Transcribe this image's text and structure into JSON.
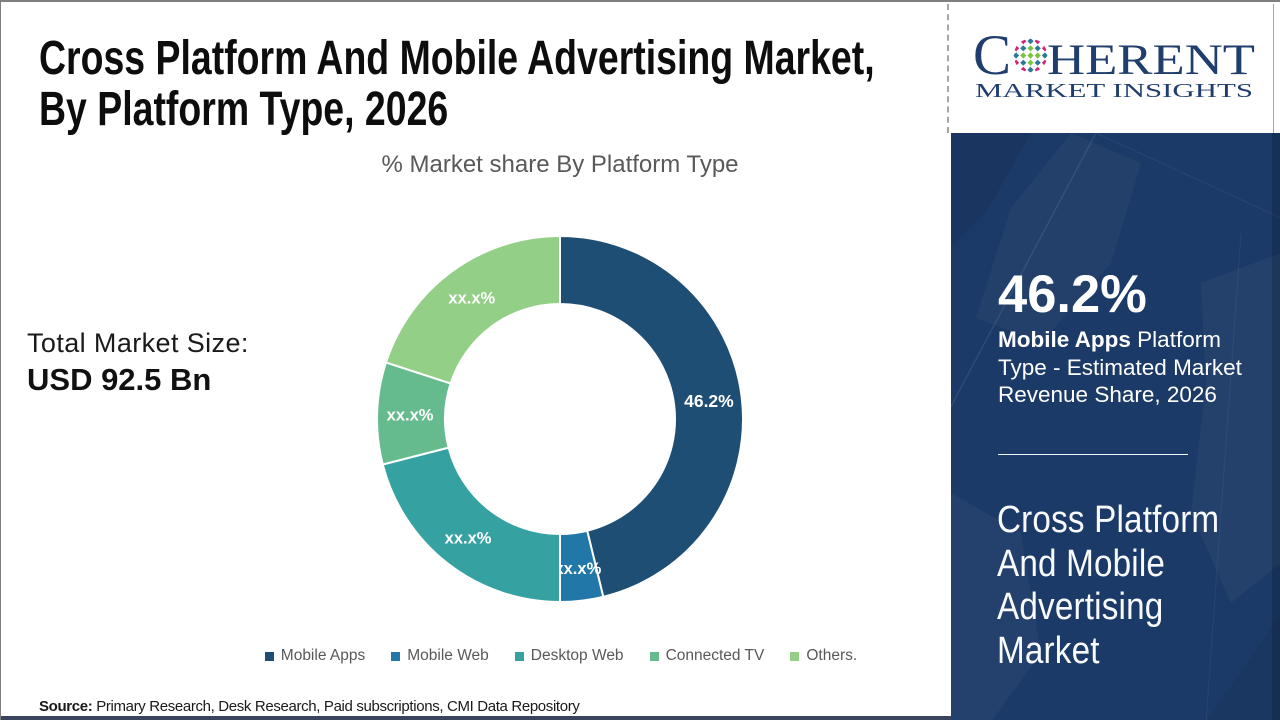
{
  "page": {
    "title": "Cross Platform And Mobile Advertising Market,\nBy Platform Type, 2026",
    "total_market": {
      "label": "Total Market Size:",
      "value": "USD 92.5 Bn"
    },
    "source": {
      "label": "Source:",
      "text": " Primary Research, Desk Research, Paid subscriptions, CMI Data Repository"
    }
  },
  "logo": {
    "brand_start": "C",
    "brand_end": "HERENT",
    "tagline": "MARKET INSIGHTS",
    "text_color": "#1f3e6d",
    "globe_colors": {
      "green": "#7dc242",
      "teal": "#2b7a99",
      "pink": "#ce2779",
      "orange": "#f68b1f"
    }
  },
  "sidebar": {
    "bg_color": "#1c3a67",
    "stat_value": "46.2%",
    "stat_desc_bold": "Mobile Apps",
    "stat_desc_rest": " Platform\nType - Estimated Market\nRevenue Share, 2026",
    "panel_title": "Cross Platform\nAnd Mobile\nAdvertising\nMarket"
  },
  "chart_data": {
    "type": "donut",
    "title": "% Market share By Platform Type",
    "unit": "% market share",
    "center": [
      190,
      190
    ],
    "outer_radius": 183,
    "inner_radius": 115,
    "label_radius": 150,
    "start_angle_deg": 0,
    "direction": "clockwise",
    "segments": [
      {
        "name": "Mobile Apps",
        "value": 46.2,
        "label": "46.2%",
        "color": "#1e4e74"
      },
      {
        "name": "Mobile Web",
        "value": 3.8,
        "label": "xx.x%",
        "color": "#2178a8"
      },
      {
        "name": "Desktop Web",
        "value": 21.0,
        "label": "xx.x%",
        "color": "#35a1a1"
      },
      {
        "name": "Connected TV",
        "value": 9.0,
        "label": "xx.x%",
        "color": "#66bb8e"
      },
      {
        "name": "Others.",
        "value": 20.0,
        "label": "xx.x%",
        "color": "#93cf86"
      }
    ],
    "legend_position": "bottom"
  }
}
